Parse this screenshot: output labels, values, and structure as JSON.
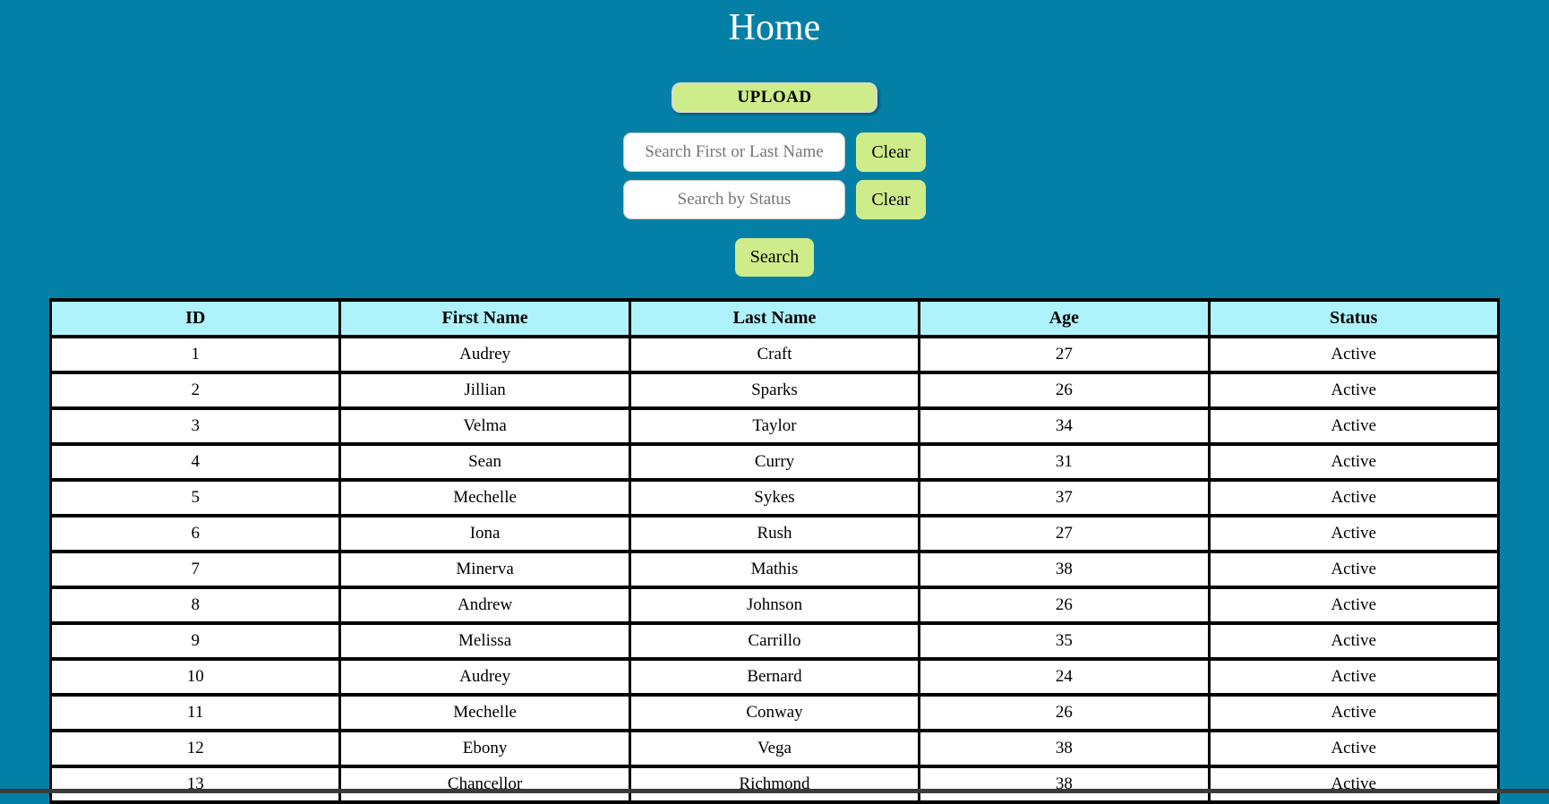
{
  "page": {
    "title": "Home"
  },
  "colors": {
    "background": "#0480A6",
    "button_green": "#CFEC8B",
    "header_cyan": "#AEF3FB",
    "table_border": "#000000",
    "title_text": "#ffffff"
  },
  "controls": {
    "upload_label": "UPLOAD",
    "name_search": {
      "placeholder": "Search First or Last Name",
      "value": "",
      "clear_label": "Clear"
    },
    "status_search": {
      "placeholder": "Search by Status",
      "value": "",
      "clear_label": "Clear"
    },
    "search_label": "Search"
  },
  "table": {
    "headers": [
      "ID",
      "First Name",
      "Last Name",
      "Age",
      "Status"
    ],
    "rows": [
      [
        "1",
        "Audrey",
        "Craft",
        "27",
        "Active"
      ],
      [
        "2",
        "Jillian",
        "Sparks",
        "26",
        "Active"
      ],
      [
        "3",
        "Velma",
        "Taylor",
        "34",
        "Active"
      ],
      [
        "4",
        "Sean",
        "Curry",
        "31",
        "Active"
      ],
      [
        "5",
        "Mechelle",
        "Sykes",
        "37",
        "Active"
      ],
      [
        "6",
        "Iona",
        "Rush",
        "27",
        "Active"
      ],
      [
        "7",
        "Minerva",
        "Mathis",
        "38",
        "Active"
      ],
      [
        "8",
        "Andrew",
        "Johnson",
        "26",
        "Active"
      ],
      [
        "9",
        "Melissa",
        "Carrillo",
        "35",
        "Active"
      ],
      [
        "10",
        "Audrey",
        "Bernard",
        "24",
        "Active"
      ],
      [
        "11",
        "Mechelle",
        "Conway",
        "26",
        "Active"
      ],
      [
        "12",
        "Ebony",
        "Vega",
        "38",
        "Active"
      ],
      [
        "13",
        "Chancellor",
        "Richmond",
        "38",
        "Active"
      ]
    ]
  }
}
